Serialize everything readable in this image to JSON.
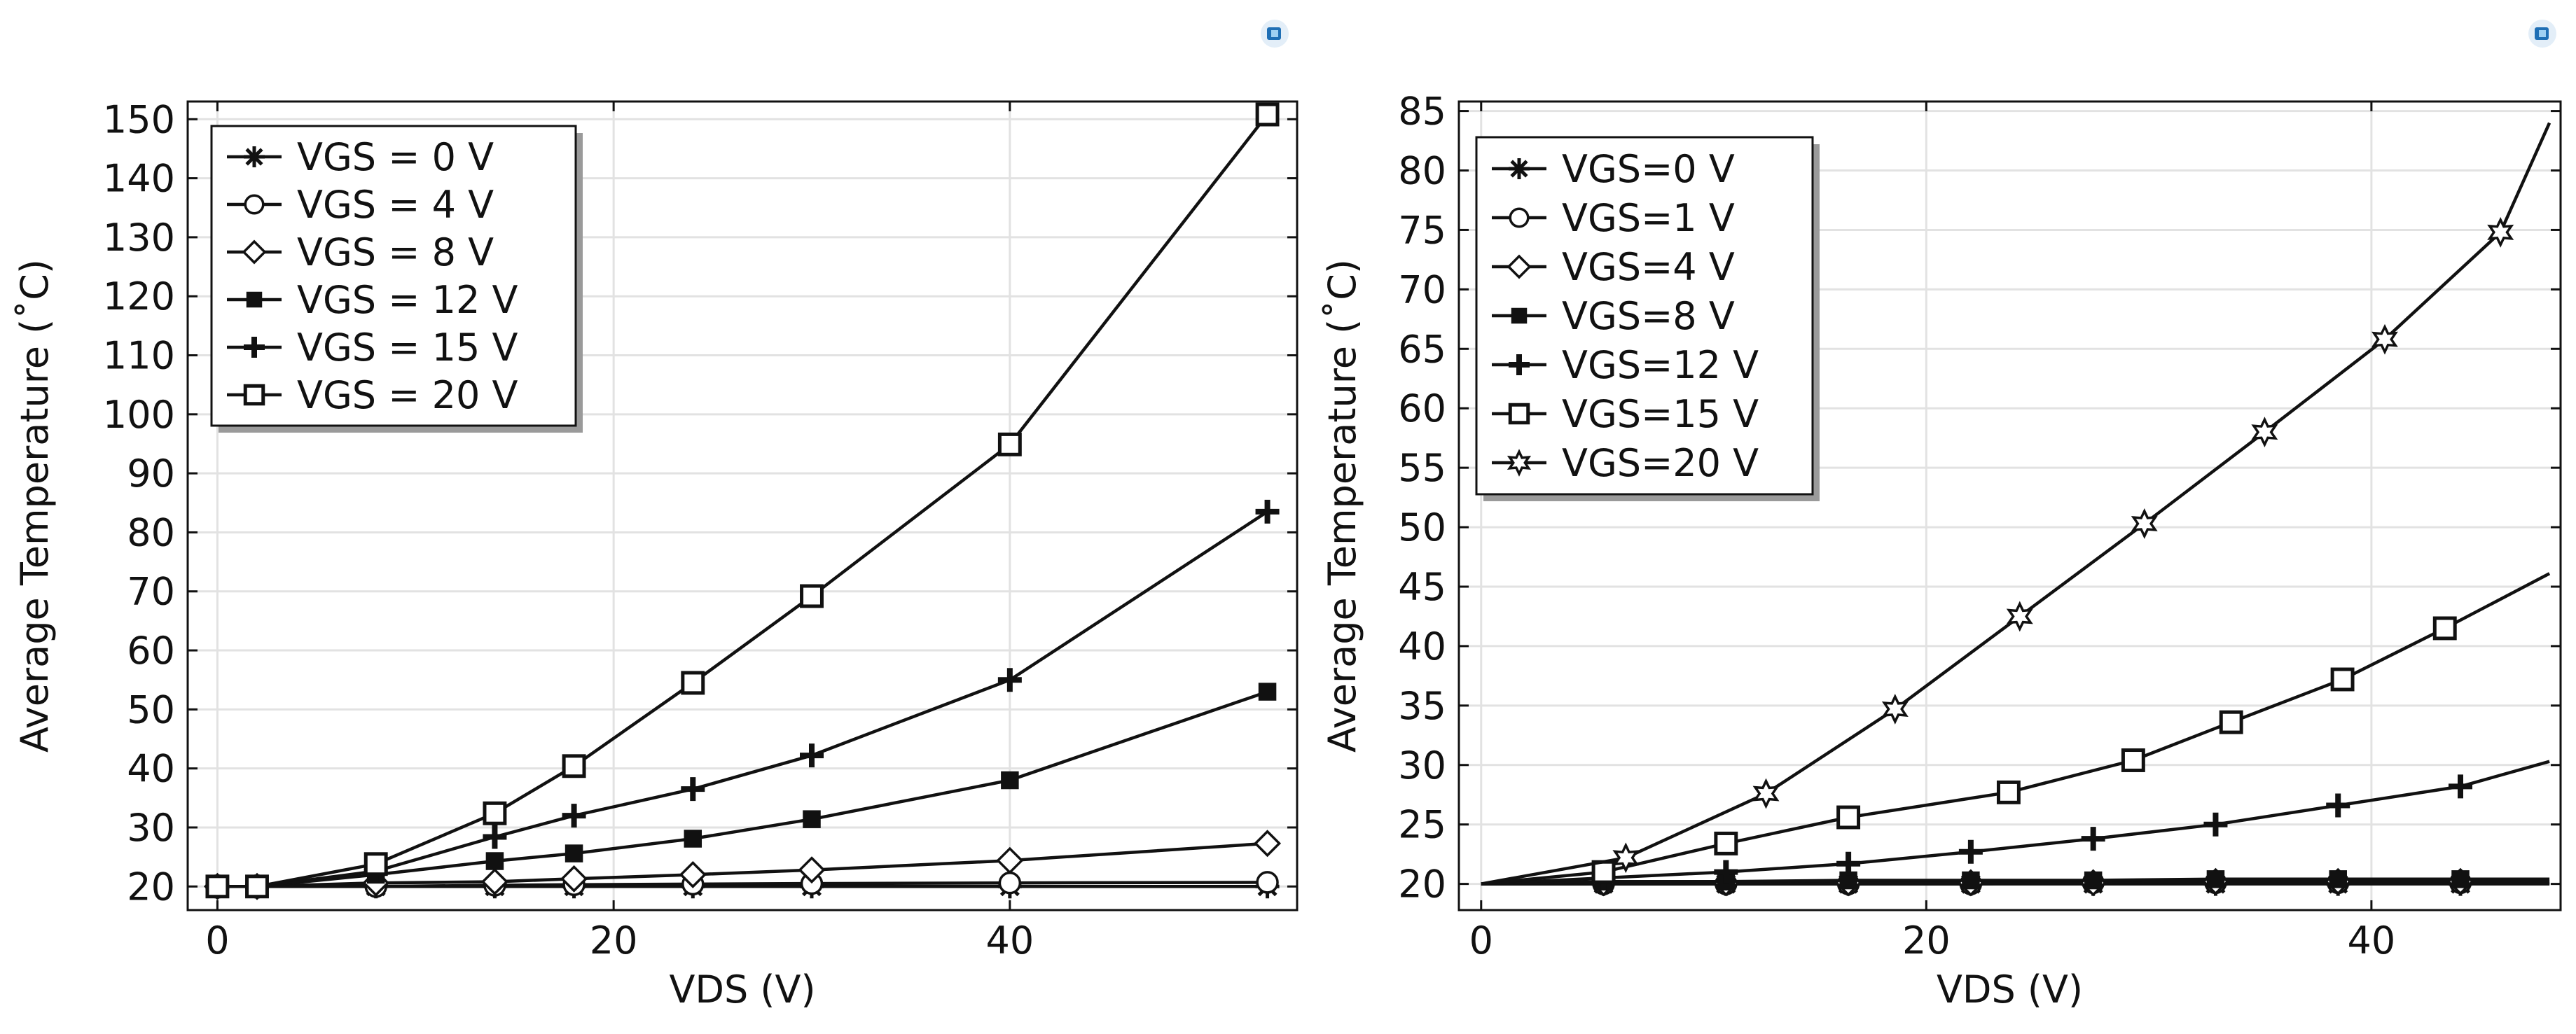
{
  "chart_data": [
    {
      "type": "line",
      "title": "",
      "xlabel": "VDS (V)",
      "ylabel": "Average Temperature (˚C)",
      "xlim": [
        -1.5,
        54.5
      ],
      "ylim": [
        16,
        153
      ],
      "xticks": [
        0,
        20,
        40
      ],
      "yticks": [
        20,
        30,
        40,
        50,
        60,
        70,
        80,
        90,
        100,
        110,
        120,
        130,
        140,
        150
      ],
      "grid": true,
      "legend_position": "top-left",
      "series": [
        {
          "name": "VGS = 0 V",
          "marker": "asterisk",
          "x": [
            0,
            2,
            8,
            14,
            18,
            24,
            30,
            40,
            53
          ],
          "y": [
            20,
            20,
            20,
            20,
            20,
            20,
            20,
            20,
            20
          ]
        },
        {
          "name": "VGS = 4 V",
          "marker": "circle",
          "x": [
            0,
            2,
            8,
            14,
            18,
            24,
            30,
            40,
            53
          ],
          "y": [
            20,
            20,
            20,
            20.2,
            20.3,
            20.4,
            20.5,
            20.6,
            20.7
          ]
        },
        {
          "name": "VGS = 8 V",
          "marker": "diamond",
          "x": [
            0,
            2,
            8,
            14,
            18,
            24,
            30,
            40,
            53
          ],
          "y": [
            20,
            20,
            20.6,
            20.8,
            21.3,
            22,
            22.8,
            24.4,
            27.3
          ]
        },
        {
          "name": "VGS = 12 V",
          "marker": "square-filled",
          "x": [
            0,
            2,
            8,
            14,
            18,
            24,
            30,
            40,
            53
          ],
          "y": [
            20,
            20,
            22,
            24.3,
            25.6,
            28.1,
            31.4,
            38,
            53
          ]
        },
        {
          "name": "VGS = 15 V",
          "marker": "plus",
          "x": [
            0,
            2,
            8,
            14,
            18,
            24,
            30,
            40,
            53
          ],
          "y": [
            20,
            20,
            22.6,
            28.4,
            32,
            36.5,
            42.2,
            55,
            83.5
          ]
        },
        {
          "name": "VGS = 20 V",
          "marker": "square",
          "x": [
            0,
            2,
            8,
            14,
            18,
            24,
            30,
            40,
            53
          ],
          "y": [
            20,
            20,
            23.8,
            32.4,
            40.4,
            54.5,
            69.2,
            94.9,
            150.8
          ]
        }
      ]
    },
    {
      "type": "line",
      "title": "",
      "xlabel": "VDS (V)",
      "ylabel": "Average Temperature (˚C)",
      "xlim": [
        -1,
        48.5
      ],
      "ylim": [
        17.8,
        85.8
      ],
      "xticks": [
        0,
        20,
        40
      ],
      "yticks": [
        20,
        25,
        30,
        35,
        40,
        45,
        50,
        55,
        60,
        65,
        70,
        75,
        80,
        85
      ],
      "grid": true,
      "legend_position": "top-left",
      "series": [
        {
          "name": "VGS=0 V",
          "marker": "asterisk",
          "x": [
            0,
            5.5,
            11,
            16.5,
            22,
            27.5,
            33,
            38.5,
            44,
            48
          ],
          "y": [
            20,
            20,
            20,
            20,
            20,
            20,
            20,
            20,
            20,
            20
          ]
        },
        {
          "name": "VGS=1 V",
          "marker": "circle",
          "x": [
            0,
            5.5,
            11,
            16.5,
            22,
            27.5,
            33,
            38.5,
            44,
            48
          ],
          "y": [
            20,
            20,
            20,
            20,
            20,
            20.1,
            20.1,
            20.1,
            20.1,
            20.1
          ]
        },
        {
          "name": "VGS=4 V",
          "marker": "diamond",
          "x": [
            0,
            5.5,
            11,
            16.5,
            22,
            27.5,
            33,
            38.5,
            44,
            48
          ],
          "y": [
            20,
            20.1,
            20.1,
            20.1,
            20.1,
            20.1,
            20.2,
            20.2,
            20.2,
            20.2
          ]
        },
        {
          "name": "VGS=8 V",
          "marker": "square-filled",
          "x": [
            0,
            5.5,
            11,
            16.5,
            22,
            27.5,
            33,
            38.5,
            44,
            48
          ],
          "y": [
            20,
            20.2,
            20.2,
            20.3,
            20.3,
            20.3,
            20.4,
            20.4,
            20.4,
            20.4
          ]
        },
        {
          "name": "VGS=12 V",
          "marker": "plus",
          "x": [
            0,
            5.5,
            11,
            16.5,
            22,
            27.5,
            33,
            38.5,
            44,
            48
          ],
          "y": [
            20,
            20.5,
            21,
            21.7,
            22.7,
            23.8,
            25,
            26.6,
            28.2,
            30.3
          ]
        },
        {
          "name": "VGS=15 V",
          "marker": "square",
          "x": [
            0,
            5.5,
            11,
            16.5,
            23.7,
            29.3,
            33.7,
            38.7,
            43.3,
            48
          ],
          "y": [
            20,
            21,
            23.4,
            25.6,
            27.7,
            30.4,
            33.6,
            37.2,
            41.5,
            46.1
          ]
        },
        {
          "name": "VGS=20 V",
          "marker": "star",
          "x": [
            0,
            6.5,
            12.8,
            18.6,
            24.2,
            29.8,
            35.2,
            40.6,
            45.8,
            48
          ],
          "y": [
            20,
            22.2,
            27.6,
            34.7,
            42.5,
            50.3,
            58,
            65.8,
            74.8,
            84
          ]
        }
      ]
    }
  ]
}
